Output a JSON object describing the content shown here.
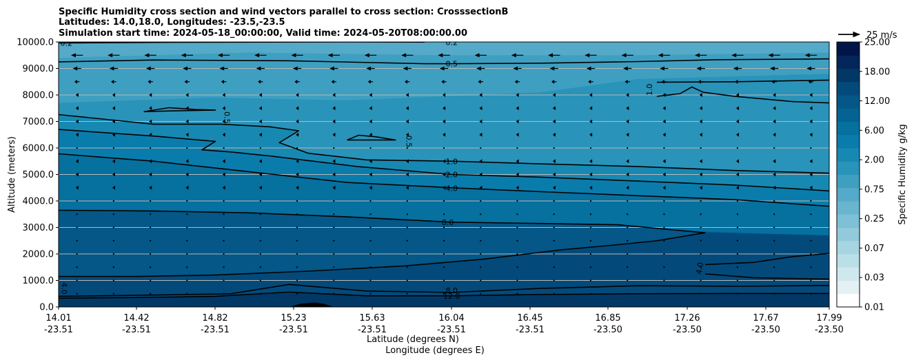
{
  "chart_data": {
    "type": "heatmap",
    "title_lines": [
      "Specific Humidity cross section and wind vectors parallel to cross section: CrosssectionB",
      "Latitudes: 14.0,18.0, Longitudes: -23.5,-23.5",
      "Simulation start time: 2024-05-18_00:00:00, Valid time: 2024-05-20T08:00:00.00"
    ],
    "ylabel": "Altitude (meters)",
    "xlabel_lat": "Latitude (degrees N)",
    "xlabel_lon": "Longitude (degrees E)",
    "ylim": [
      0,
      10000
    ],
    "y_ticks": [
      "0.0",
      "1000.0",
      "2000.0",
      "3000.0",
      "4000.0",
      "5000.0",
      "6000.0",
      "7000.0",
      "8000.0",
      "9000.0",
      "10000.0"
    ],
    "y_tick_values": [
      0,
      1000,
      2000,
      3000,
      4000,
      5000,
      6000,
      7000,
      8000,
      9000,
      10000
    ],
    "x_ticks_lat": [
      "14.01",
      "14.42",
      "14.82",
      "15.23",
      "15.63",
      "16.04",
      "16.45",
      "16.85",
      "17.26",
      "17.67",
      "17.99"
    ],
    "x_ticks_lon": [
      "-23.51",
      "-23.51",
      "-23.51",
      "-23.51",
      "-23.51",
      "-23.51",
      "-23.51",
      "-23.50",
      "-23.50",
      "-23.50",
      "-23.50"
    ],
    "xlim_lat": [
      14.01,
      17.99
    ],
    "grid": "horizontal",
    "colorbar": {
      "label": "Specific Humidity g/kg",
      "levels": [
        0.01,
        0.02,
        0.03,
        0.05,
        0.07,
        0.1,
        0.25,
        0.5,
        0.75,
        1.0,
        2.0,
        4.0,
        6.0,
        9.0,
        12.0,
        15.0,
        18.0,
        22.0,
        25.0
      ],
      "tick_labels": [
        "0.01",
        "0.03",
        "0.07",
        "0.25",
        "0.75",
        "2.00",
        "6.00",
        "12.00",
        "18.00",
        "25.00"
      ],
      "tick_levels": [
        0.01,
        0.03,
        0.07,
        0.25,
        0.75,
        2.0,
        6.0,
        12.0,
        18.0,
        25.0
      ],
      "colors": [
        "#ffffff",
        "#e3f1f4",
        "#cfe8ee",
        "#bbdfe8",
        "#a7d5e1",
        "#92cadb",
        "#7ec0d5",
        "#69b5ce",
        "#54aac8",
        "#3f9fc1",
        "#2a93b9",
        "#1788b2",
        "#0a7cab",
        "#06709f",
        "#056393",
        "#045787",
        "#034a7a",
        "#023865",
        "#02265a",
        "#011548"
      ]
    },
    "quiver_key": {
      "label": "25 m/s",
      "speed": 25
    },
    "contours": [
      {
        "level": "0.2",
        "points": [
          [
            14.01,
            9960
          ],
          [
            14.6,
            9990
          ],
          [
            15.5,
            10000
          ],
          [
            15.9,
            9995
          ]
        ]
      },
      {
        "level": "0.5",
        "points": [
          [
            14.01,
            9250
          ],
          [
            14.5,
            9320
          ],
          [
            15.2,
            9290
          ],
          [
            15.9,
            9180
          ],
          [
            16.04,
            9180
          ],
          [
            16.5,
            9200
          ],
          [
            17.0,
            9260
          ],
          [
            17.4,
            9330
          ],
          [
            17.99,
            9360
          ]
        ]
      },
      {
        "level": "0.5",
        "points": [
          [
            14.45,
            7370
          ],
          [
            14.58,
            7520
          ],
          [
            14.72,
            7450
          ],
          [
            14.82,
            7430
          ],
          [
            14.6,
            7400
          ],
          [
            14.45,
            7370
          ]
        ]
      },
      {
        "level": "0.5",
        "points": [
          [
            15.5,
            6300
          ],
          [
            15.56,
            6480
          ],
          [
            15.65,
            6420
          ],
          [
            15.75,
            6300
          ],
          [
            15.5,
            6300
          ]
        ]
      },
      {
        "level": "1.0",
        "points": [
          [
            17.1,
            8480
          ],
          [
            17.5,
            8500
          ],
          [
            17.99,
            8560
          ]
        ]
      },
      {
        "level": "1.0",
        "points": [
          [
            17.1,
            7950
          ],
          [
            17.22,
            8050
          ],
          [
            17.28,
            8300
          ],
          [
            17.34,
            8100
          ],
          [
            17.5,
            7950
          ],
          [
            17.8,
            7750
          ],
          [
            17.99,
            7700
          ]
        ]
      },
      {
        "level": "1.0",
        "points": [
          [
            14.01,
            7260
          ],
          [
            14.5,
            6900
          ],
          [
            14.85,
            6900
          ],
          [
            15.1,
            6800
          ],
          [
            15.25,
            6650
          ],
          [
            15.15,
            6200
          ],
          [
            15.3,
            5800
          ],
          [
            15.6,
            5550
          ],
          [
            16.04,
            5500
          ],
          [
            16.5,
            5400
          ],
          [
            17.0,
            5300
          ],
          [
            17.5,
            5150
          ],
          [
            17.99,
            5050
          ]
        ]
      },
      {
        "level": "2.0",
        "points": [
          [
            14.01,
            6700
          ],
          [
            14.5,
            6450
          ],
          [
            14.82,
            6250
          ],
          [
            14.75,
            5930
          ],
          [
            14.9,
            5850
          ],
          [
            15.1,
            5700
          ],
          [
            15.55,
            5300
          ],
          [
            16.04,
            5000
          ],
          [
            16.5,
            4900
          ],
          [
            17.0,
            4750
          ],
          [
            17.5,
            4600
          ],
          [
            17.99,
            4380
          ]
        ]
      },
      {
        "level": "4.0",
        "points": [
          [
            14.01,
            5780
          ],
          [
            14.5,
            5500
          ],
          [
            15.0,
            5100
          ],
          [
            15.5,
            4700
          ],
          [
            16.04,
            4500
          ],
          [
            16.5,
            4350
          ],
          [
            17.0,
            4200
          ],
          [
            17.5,
            4050
          ],
          [
            17.99,
            3800
          ]
        ]
      },
      {
        "level": "8.0",
        "points": [
          [
            14.01,
            3650
          ],
          [
            14.5,
            3620
          ],
          [
            15.0,
            3550
          ],
          [
            15.5,
            3400
          ],
          [
            16.04,
            3200
          ],
          [
            16.5,
            3150
          ],
          [
            16.9,
            3100
          ],
          [
            17.2,
            2900
          ],
          [
            17.35,
            2800
          ],
          [
            17.1,
            2500
          ],
          [
            16.9,
            2350
          ],
          [
            16.6,
            2150
          ],
          [
            16.2,
            1800
          ],
          [
            15.8,
            1550
          ],
          [
            15.3,
            1350
          ],
          [
            14.8,
            1200
          ],
          [
            14.4,
            1150
          ],
          [
            14.01,
            1150
          ]
        ]
      },
      {
        "level": "4.0",
        "points": [
          [
            17.35,
            1600
          ],
          [
            17.6,
            1680
          ],
          [
            17.8,
            1900
          ],
          [
            17.99,
            2020
          ]
        ]
      },
      {
        "level": "4.0",
        "points": [
          [
            17.35,
            1250
          ],
          [
            17.6,
            1100
          ],
          [
            17.99,
            1050
          ]
        ]
      },
      {
        "level": "8.0",
        "points": [
          [
            14.01,
            400
          ],
          [
            14.5,
            450
          ],
          [
            14.9,
            500
          ],
          [
            15.2,
            850
          ],
          [
            15.6,
            600
          ],
          [
            16.04,
            550
          ],
          [
            16.5,
            700
          ],
          [
            17.0,
            800
          ],
          [
            17.5,
            780
          ],
          [
            17.99,
            810
          ]
        ]
      },
      {
        "level": "12.0",
        "points": [
          [
            14.01,
            330
          ],
          [
            14.5,
            360
          ],
          [
            14.82,
            400
          ],
          [
            15.2,
            560
          ],
          [
            15.6,
            420
          ],
          [
            16.04,
            420
          ],
          [
            16.5,
            470
          ],
          [
            17.0,
            500
          ],
          [
            17.5,
            510
          ],
          [
            17.99,
            510
          ]
        ]
      }
    ],
    "contour_labels": [
      {
        "text": "0.2",
        "x": 16.04,
        "y": 9990
      },
      {
        "text": "0.2",
        "x": 14.05,
        "y": 9960
      },
      {
        "text": "0.5",
        "x": 16.04,
        "y": 9180
      },
      {
        "text": "0.5",
        "x": 14.88,
        "y": 7150,
        "rotate": 90
      },
      {
        "text": "0.5",
        "x": 15.82,
        "y": 6250,
        "rotate": 90
      },
      {
        "text": "1.0",
        "x": 17.06,
        "y": 8200,
        "rotate": -90
      },
      {
        "text": "1.0",
        "x": 16.04,
        "y": 5500
      },
      {
        "text": "2.0",
        "x": 16.04,
        "y": 5000
      },
      {
        "text": "4.0",
        "x": 16.04,
        "y": 4480
      },
      {
        "text": "8.0",
        "x": 16.02,
        "y": 3200
      },
      {
        "text": "4.0",
        "x": 17.32,
        "y": 1460,
        "rotate": -80
      },
      {
        "text": "4.0",
        "x": 14.04,
        "y": 700,
        "rotate": 90
      },
      {
        "text": "8.0",
        "x": 16.04,
        "y": 620
      },
      {
        "text": "12.0",
        "x": 16.04,
        "y": 420
      }
    ],
    "wind_rows": [
      {
        "z": 9500,
        "u": -14
      },
      {
        "z": 9000,
        "u": -10
      },
      {
        "z": 8500,
        "u": -6
      },
      {
        "z": 8000,
        "u": -3
      },
      {
        "z": 7500,
        "u": -3
      },
      {
        "z": 7000,
        "u": -3
      },
      {
        "z": 6500,
        "u": -3
      },
      {
        "z": 6000,
        "u": -2
      },
      {
        "z": 5500,
        "u": -3
      },
      {
        "z": 5000,
        "u": -3
      },
      {
        "z": 4500,
        "u": -3
      },
      {
        "z": 4000,
        "u": -2
      },
      {
        "z": 3500,
        "u": -2
      },
      {
        "z": 3000,
        "u": -1
      },
      {
        "z": 2500,
        "u": -1
      },
      {
        "z": 2000,
        "u": -1
      },
      {
        "z": 1500,
        "u": -1
      },
      {
        "z": 1000,
        "u": -1
      },
      {
        "z": 500,
        "u": 2
      }
    ],
    "terrain": {
      "x": [
        15.2,
        15.26,
        15.33,
        15.38,
        15.43
      ],
      "z": [
        0,
        120,
        170,
        120,
        0
      ]
    }
  }
}
